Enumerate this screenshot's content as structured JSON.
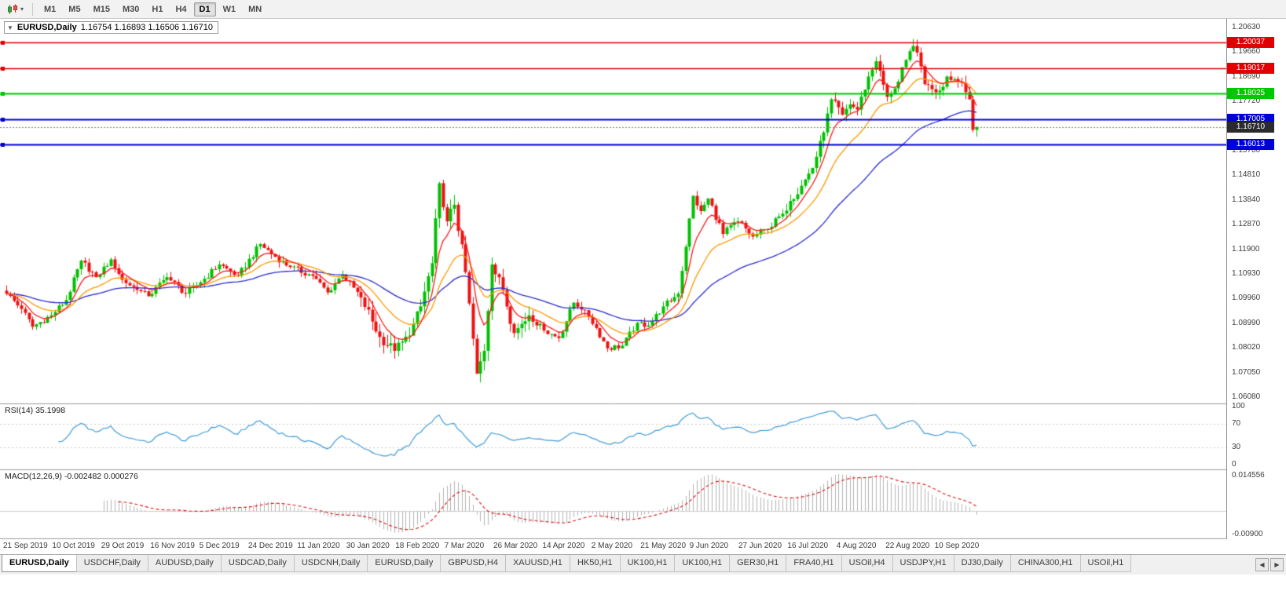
{
  "toolbar": {
    "timeframes": [
      "M1",
      "M5",
      "M15",
      "M30",
      "H1",
      "H4",
      "D1",
      "W1",
      "MN"
    ],
    "active_timeframe": "D1"
  },
  "icons": {
    "dropdown_caret": "▾",
    "collapse_triangle": "▼",
    "tab_scroll_left": "◀",
    "tab_scroll_right": "▶"
  },
  "chart": {
    "symbol_period": "EURUSD,Daily",
    "ohlc_text": "1.16754 1.16893 1.16506 1.16710"
  },
  "tabs": {
    "active_index": 0,
    "items": [
      "EURUSD,Daily",
      "USDCHF,Daily",
      "AUDUSD,Daily",
      "USDCAD,Daily",
      "USDCNH,Daily",
      "EURUSD,Daily",
      "GBPUSD,H4",
      "XAUUSD,H1",
      "HK50,H1",
      "UK100,H1",
      "UK100,H1",
      "GER30,H1",
      "FRA40,H1",
      "USOil,H4",
      "USDJPY,H1",
      "DJ30,Daily",
      "CHINA300,H1",
      "USOil,H1"
    ]
  },
  "chart_data": {
    "type": "candlestick",
    "symbol": "EURUSD",
    "timeframe": "Daily",
    "ohlc": {
      "open": "1.16754",
      "high": "1.16893",
      "low": "1.16506",
      "close": "1.16710"
    },
    "ylim": [
      1.0583,
      1.2097
    ],
    "n_candles": 261,
    "x_tick_labels": [
      "21 Sep 2019",
      "10 Oct 2019",
      "29 Oct 2019",
      "16 Nov 2019",
      "5 Dec 2019",
      "24 Dec 2019",
      "11 Jan 2020",
      "30 Jan 2020",
      "18 Feb 2020",
      "7 Mar 2020",
      "26 Mar 2020",
      "14 Apr 2020",
      "2 May 2020",
      "21 May 2020",
      "9 Jun 2020",
      "27 Jun 2020",
      "16 Jul 2020",
      "4 Aug 2020",
      "22 Aug 2020",
      "10 Sep 2020"
    ],
    "y_tick_labels": [
      "1.20630",
      "1.19660",
      "1.18690",
      "1.17720",
      "1.16750",
      "1.15780",
      "1.14810",
      "1.13840",
      "1.12870",
      "1.11900",
      "1.10930",
      "1.09960",
      "1.08990",
      "1.08020",
      "1.07050",
      "1.06080"
    ],
    "price_path_anchors": [
      [
        0,
        1.1015
      ],
      [
        4,
        1.0955
      ],
      [
        7,
        1.0885
      ],
      [
        12,
        1.093
      ],
      [
        16,
        1.099
      ],
      [
        20,
        1.1145
      ],
      [
        24,
        1.108
      ],
      [
        28,
        1.115
      ],
      [
        31,
        1.107
      ],
      [
        35,
        1.103
      ],
      [
        38,
        1.1005
      ],
      [
        43,
        1.108
      ],
      [
        48,
        1.1015
      ],
      [
        52,
        1.106
      ],
      [
        57,
        1.113
      ],
      [
        62,
        1.1085
      ],
      [
        68,
        1.121
      ],
      [
        72,
        1.116
      ],
      [
        76,
        1.112
      ],
      [
        82,
        1.1085
      ],
      [
        86,
        1.102
      ],
      [
        90,
        1.109
      ],
      [
        95,
        1.1
      ],
      [
        100,
        1.0845
      ],
      [
        104,
        1.079
      ],
      [
        108,
        1.085
      ],
      [
        111,
        1.0965
      ],
      [
        114,
        1.1135
      ],
      [
        116,
        1.145
      ],
      [
        118,
        1.13
      ],
      [
        120,
        1.1365
      ],
      [
        123,
        1.11
      ],
      [
        126,
        1.07
      ],
      [
        128,
        1.079
      ],
      [
        130,
        1.113
      ],
      [
        133,
        1.103
      ],
      [
        136,
        1.086
      ],
      [
        140,
        1.093
      ],
      [
        144,
        1.087
      ],
      [
        148,
        1.084
      ],
      [
        152,
        1.098
      ],
      [
        155,
        1.095
      ],
      [
        158,
        1.088
      ],
      [
        161,
        1.08
      ],
      [
        165,
        1.081
      ],
      [
        169,
        1.09
      ],
      [
        172,
        1.089
      ],
      [
        176,
        1.0965
      ],
      [
        180,
        1.1015
      ],
      [
        184,
        1.14
      ],
      [
        186,
        1.134
      ],
      [
        188,
        1.139
      ],
      [
        192,
        1.125
      ],
      [
        196,
        1.13
      ],
      [
        200,
        1.124
      ],
      [
        204,
        1.127
      ],
      [
        208,
        1.133
      ],
      [
        210,
        1.138
      ],
      [
        213,
        1.144
      ],
      [
        216,
        1.151
      ],
      [
        219,
        1.165
      ],
      [
        221,
        1.178
      ],
      [
        224,
        1.172
      ],
      [
        226,
        1.176
      ],
      [
        228,
        1.174
      ],
      [
        231,
        1.187
      ],
      [
        233,
        1.193
      ],
      [
        236,
        1.179
      ],
      [
        239,
        1.185
      ],
      [
        241,
        1.1935
      ],
      [
        243,
        1.199
      ],
      [
        245,
        1.191
      ],
      [
        246,
        1.184
      ],
      [
        248,
        1.182
      ],
      [
        250,
        1.1815
      ],
      [
        252,
        1.187
      ],
      [
        254,
        1.186
      ],
      [
        256,
        1.1845
      ],
      [
        258,
        1.178
      ],
      [
        259,
        1.166
      ],
      [
        260,
        1.1671
      ]
    ],
    "horizontal_lines": [
      {
        "price": "1.20037",
        "color": "#e00000",
        "width": 1.4
      },
      {
        "price": "1.19017",
        "color": "#e00000",
        "width": 1.4
      },
      {
        "price": "1.18025",
        "color": "#00c800",
        "width": 2
      },
      {
        "price": "1.17005",
        "color": "#0000d8",
        "width": 2
      },
      {
        "price": "1.16013",
        "color": "#0000d8",
        "width": 2
      }
    ],
    "current_price_label": {
      "price": "1.16710",
      "bg": "#2b2b2b"
    },
    "indicators": {
      "moving_averages": [
        {
          "name": "fast",
          "color": "#ff1a1a",
          "period": 7
        },
        {
          "name": "medium",
          "color": "#ff9900",
          "period": 18
        },
        {
          "name": "slow",
          "color": "#2b2bd0",
          "period": 48
        }
      ],
      "rsi": {
        "label": "RSI(14) 35.1998",
        "value": "35.1998",
        "axis_labels": [
          "100",
          "70",
          "30",
          "0"
        ],
        "levels": [
          70,
          30
        ],
        "color": "#3f9bd8"
      },
      "macd": {
        "label": "MACD(12,26,9) -0.002482 0.000276",
        "values": [
          "-0.002482",
          "0.000276"
        ],
        "axis_labels": [
          "0.014556",
          "-0.00900"
        ],
        "hist_color": "#b4b4b4",
        "signal_color": "#e01010"
      }
    },
    "palette": {
      "bull": "#00c000",
      "bear": "#ee1111",
      "background": "#ffffff"
    }
  }
}
